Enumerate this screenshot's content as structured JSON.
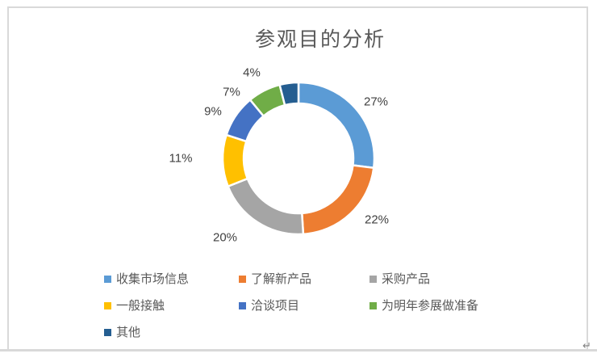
{
  "page": {
    "return_mark": "↵"
  },
  "chart_data": {
    "type": "pie",
    "subtype": "donut",
    "title": "参观目的分析",
    "categories": [
      "收集市场信息",
      "了解新产品",
      "采购产品",
      "一般接触",
      "洽谈项目",
      "为明年参展做准备",
      "其他"
    ],
    "values": [
      27,
      22,
      20,
      11,
      9,
      7,
      4
    ],
    "labels": [
      "27%",
      "22%",
      "20%",
      "11%",
      "9%",
      "7%",
      "4%"
    ],
    "unit": "%",
    "colors": [
      "#5B9BD5",
      "#ED7D31",
      "#A5A5A5",
      "#FFC000",
      "#4472C4",
      "#70AD47",
      "#255E91"
    ],
    "start_angle": 0,
    "direction": "clockwise",
    "donut_hole": 0.72,
    "slice_border_color": "#FFFFFF",
    "legend_position": "bottom",
    "title_color": "#595959",
    "label_color": "#404040",
    "legend_text_color": "#595959"
  }
}
